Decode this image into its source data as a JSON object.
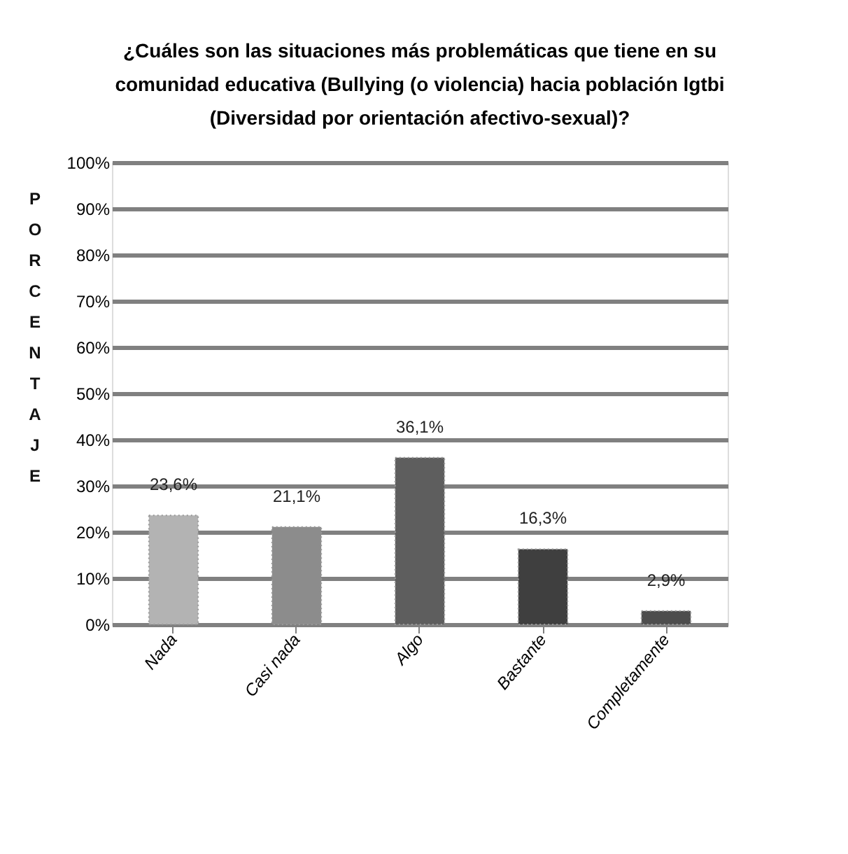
{
  "chart_data": {
    "type": "bar",
    "title": [
      "¿Cuáles son las situaciones más problemáticas que tiene en su",
      "comunidad educativa (Bullying  (o violencia) hacia población lgtbi",
      "(Diversidad por orientación afectivo-sexual)?"
    ],
    "ylabel": "PORCENTAJE",
    "categories": [
      "Nada",
      "Casi nada",
      "Algo",
      "Bastante",
      "Completamente"
    ],
    "values": [
      23.6,
      21.1,
      36.1,
      16.3,
      2.9
    ],
    "colors": [
      "#b3b3b3",
      "#8c8c8c",
      "#5e5e5e",
      "#3f3f3f",
      "#4d4d4d"
    ],
    "value_labels": [
      "23,6%",
      "21,1%",
      "36,1%",
      "16,3%",
      "2,9%"
    ],
    "ylim": [
      0,
      100
    ],
    "yticks": [
      {
        "value": 0,
        "label": "0%"
      },
      {
        "value": 10,
        "label": "10%"
      },
      {
        "value": 20,
        "label": "20%"
      },
      {
        "value": 30,
        "label": "30%"
      },
      {
        "value": 40,
        "label": "40%"
      },
      {
        "value": 50,
        "label": "50%"
      },
      {
        "value": 60,
        "label": "60%"
      },
      {
        "value": 70,
        "label": "70%"
      },
      {
        "value": 80,
        "label": "80%"
      },
      {
        "value": 90,
        "label": "90%"
      },
      {
        "value": 100,
        "label": "100%"
      }
    ],
    "grid": "y"
  }
}
